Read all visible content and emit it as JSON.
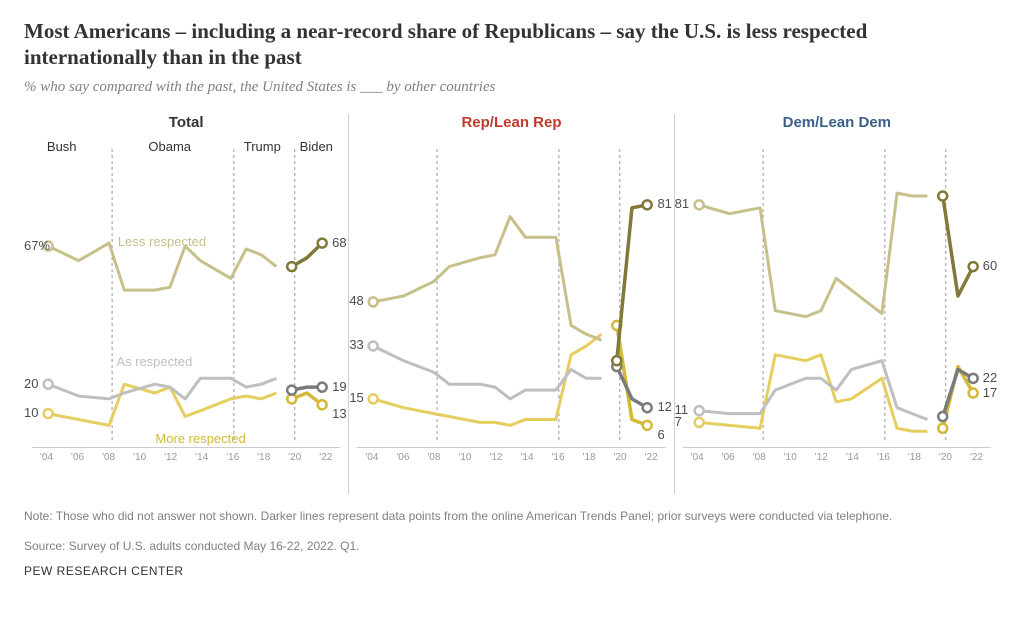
{
  "title": "Most Americans – including a near-record share of Republicans – say the U.S. is less respected internationally than in the past",
  "subtitle": "% who say compared with the past, the United States is ___ by other countries",
  "x_ticks": [
    "'04",
    "'06",
    "'08",
    "'10",
    "'12",
    "'14",
    "'16",
    "'18",
    "'20",
    "'22"
  ],
  "year_domain": [
    2004,
    2022
  ],
  "y_domain": [
    0,
    100
  ],
  "colors": {
    "less_light": "#c7c08a",
    "less_dark": "#80793a",
    "as_light": "#bfbfbf",
    "as_dark": "#7a7a7a",
    "more_light": "#e6cd5f",
    "more_dark": "#d4b838",
    "title_total": "#333333",
    "title_rep": "#bf3b2b",
    "title_dem": "#3c5f8a",
    "end_label": "#4d4d4d",
    "grid": "#cccccc",
    "vline": "#999999"
  },
  "periods": [
    {
      "label": "Bush",
      "x": 2005
    },
    {
      "label": "Obama",
      "x": 2012
    },
    {
      "label": "Trump",
      "x": 2018
    },
    {
      "label": "Biden",
      "x": 2021.5
    }
  ],
  "period_boundaries": [
    2008.2,
    2016.2,
    2020.2
  ],
  "series_legend": {
    "less": "Less respected",
    "as": "As respected",
    "more": "More respected"
  },
  "panels": [
    {
      "key": "total",
      "title": "Total",
      "title_color": "#333333",
      "show_periods": true,
      "show_legend": true,
      "start_labels": {
        "less": "67%",
        "as": "20",
        "more": "10"
      },
      "end_labels": {
        "less": "68",
        "as": "19",
        "more": "13"
      },
      "light": {
        "less": [
          [
            2004,
            67
          ],
          [
            2006,
            62
          ],
          [
            2008,
            68
          ],
          [
            2009,
            52
          ],
          [
            2011,
            52
          ],
          [
            2012,
            53
          ],
          [
            2013,
            67
          ],
          [
            2014,
            62
          ],
          [
            2016,
            56
          ],
          [
            2017,
            66
          ],
          [
            2018,
            64
          ],
          [
            2019,
            60
          ]
        ],
        "as": [
          [
            2004,
            20
          ],
          [
            2006,
            16
          ],
          [
            2008,
            15
          ],
          [
            2009,
            17
          ],
          [
            2011,
            20
          ],
          [
            2012,
            19
          ],
          [
            2013,
            15
          ],
          [
            2014,
            22
          ],
          [
            2016,
            22
          ],
          [
            2017,
            19
          ],
          [
            2018,
            20
          ],
          [
            2019,
            22
          ]
        ],
        "more": [
          [
            2004,
            10
          ],
          [
            2006,
            8
          ],
          [
            2008,
            6
          ],
          [
            2009,
            20
          ],
          [
            2011,
            17
          ],
          [
            2012,
            19
          ],
          [
            2013,
            9
          ],
          [
            2014,
            11
          ],
          [
            2016,
            15
          ],
          [
            2017,
            16
          ],
          [
            2018,
            15
          ],
          [
            2019,
            17
          ]
        ]
      },
      "dark": {
        "less": [
          [
            2020,
            60
          ],
          [
            2021,
            63
          ],
          [
            2022,
            68
          ]
        ],
        "as": [
          [
            2020,
            18
          ],
          [
            2021,
            19
          ],
          [
            2022,
            19
          ]
        ],
        "more": [
          [
            2020,
            15
          ],
          [
            2021,
            17
          ],
          [
            2022,
            13
          ]
        ]
      }
    },
    {
      "key": "rep",
      "title": "Rep/Lean Rep",
      "title_color": "#bf3b2b",
      "show_periods": false,
      "show_legend": false,
      "start_labels": {
        "less": "48",
        "as": "33",
        "more": "15"
      },
      "end_labels": {
        "less": "81",
        "as": "12",
        "more": "6"
      },
      "light": {
        "less": [
          [
            2004,
            48
          ],
          [
            2006,
            50
          ],
          [
            2008,
            55
          ],
          [
            2009,
            60
          ],
          [
            2011,
            63
          ],
          [
            2012,
            64
          ],
          [
            2013,
            77
          ],
          [
            2014,
            70
          ],
          [
            2016,
            70
          ],
          [
            2017,
            40
          ],
          [
            2018,
            37
          ],
          [
            2019,
            35
          ]
        ],
        "as": [
          [
            2004,
            33
          ],
          [
            2006,
            28
          ],
          [
            2008,
            24
          ],
          [
            2009,
            20
          ],
          [
            2011,
            20
          ],
          [
            2012,
            19
          ],
          [
            2013,
            15
          ],
          [
            2014,
            18
          ],
          [
            2016,
            18
          ],
          [
            2017,
            25
          ],
          [
            2018,
            22
          ],
          [
            2019,
            22
          ]
        ],
        "more": [
          [
            2004,
            15
          ],
          [
            2006,
            12
          ],
          [
            2008,
            10
          ],
          [
            2009,
            9
          ],
          [
            2011,
            7
          ],
          [
            2012,
            7
          ],
          [
            2013,
            6
          ],
          [
            2014,
            8
          ],
          [
            2016,
            8
          ],
          [
            2017,
            30
          ],
          [
            2018,
            33
          ],
          [
            2019,
            37
          ]
        ]
      },
      "dark": {
        "less": [
          [
            2020,
            28
          ],
          [
            2021,
            80
          ],
          [
            2022,
            81
          ]
        ],
        "as": [
          [
            2020,
            26
          ],
          [
            2021,
            15
          ],
          [
            2022,
            12
          ]
        ],
        "more": [
          [
            2020,
            40
          ],
          [
            2021,
            8
          ],
          [
            2022,
            6
          ]
        ]
      }
    },
    {
      "key": "dem",
      "title": "Dem/Lean Dem",
      "title_color": "#3c5f8a",
      "show_periods": false,
      "show_legend": false,
      "start_labels": {
        "less": "81",
        "as": "11",
        "more": "7"
      },
      "end_labels": {
        "less": "60",
        "as": "22",
        "more": "17"
      },
      "light": {
        "less": [
          [
            2004,
            81
          ],
          [
            2006,
            78
          ],
          [
            2008,
            80
          ],
          [
            2009,
            45
          ],
          [
            2011,
            43
          ],
          [
            2012,
            45
          ],
          [
            2013,
            56
          ],
          [
            2014,
            52
          ],
          [
            2016,
            44
          ],
          [
            2017,
            85
          ],
          [
            2018,
            84
          ],
          [
            2019,
            84
          ]
        ],
        "as": [
          [
            2004,
            11
          ],
          [
            2006,
            10
          ],
          [
            2008,
            10
          ],
          [
            2009,
            18
          ],
          [
            2011,
            22
          ],
          [
            2012,
            22
          ],
          [
            2013,
            18
          ],
          [
            2014,
            25
          ],
          [
            2016,
            28
          ],
          [
            2017,
            12
          ],
          [
            2018,
            10
          ],
          [
            2019,
            8
          ]
        ],
        "more": [
          [
            2004,
            7
          ],
          [
            2006,
            6
          ],
          [
            2008,
            5
          ],
          [
            2009,
            30
          ],
          [
            2011,
            28
          ],
          [
            2012,
            30
          ],
          [
            2013,
            14
          ],
          [
            2014,
            15
          ],
          [
            2016,
            22
          ],
          [
            2017,
            5
          ],
          [
            2018,
            4
          ],
          [
            2019,
            4
          ]
        ]
      },
      "dark": {
        "less": [
          [
            2020,
            84
          ],
          [
            2021,
            50
          ],
          [
            2022,
            60
          ]
        ],
        "as": [
          [
            2020,
            9
          ],
          [
            2021,
            25
          ],
          [
            2022,
            22
          ]
        ],
        "more": [
          [
            2020,
            5
          ],
          [
            2021,
            26
          ],
          [
            2022,
            17
          ]
        ]
      }
    }
  ],
  "note": "Note: Those who did not answer not shown. Darker lines represent data points from the online American Trends Panel; prior surveys were conducted via telephone.",
  "source": "Source: Survey of U.S. adults conducted May 16-22, 2022. Q1.",
  "attribution": "PEW RESEARCH CENTER"
}
